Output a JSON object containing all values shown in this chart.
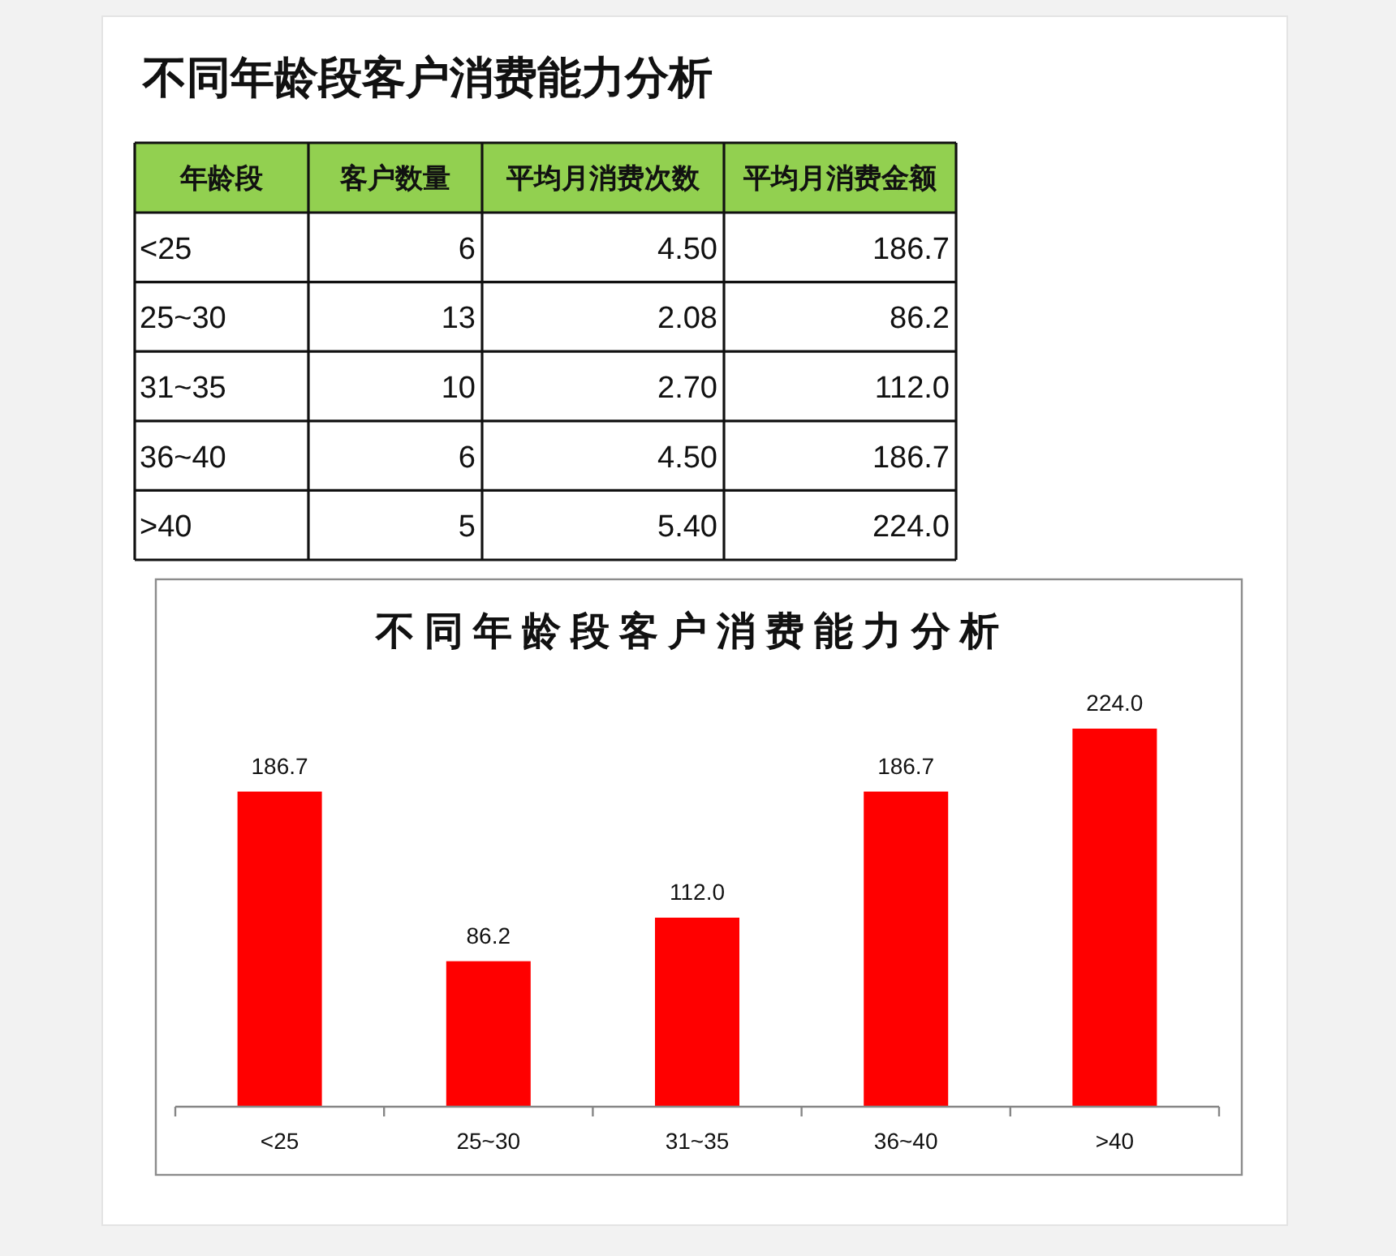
{
  "chart_data": [
    {
      "type": "other",
      "title": "不同年龄段客户消费能力分析",
      "xlabel": "年龄段",
      "categories": [
        "<25",
        "25~30",
        "31~35",
        "36~40",
        ">40"
      ],
      "data_labels": true,
      "series": [
        {
          "name": "客户数量",
          "values": [
            6,
            13,
            10,
            6,
            5
          ]
        },
        {
          "name": "平均月消费次数",
          "values": [
            4.5,
            2.08,
            2.7,
            4.5,
            5.4
          ],
          "value_labels": [
            "4.50",
            "2.08",
            "2.70",
            "4.50",
            "5.40"
          ]
        },
        {
          "name": "平均月消费金额",
          "values": [
            186.7,
            86.2,
            112.0,
            186.7,
            224.0
          ],
          "value_labels": [
            "186.7",
            "86.2",
            "112.0",
            "186.7",
            "224.0"
          ]
        }
      ]
    },
    {
      "type": "bar",
      "title": "不同年龄段客户消费能力分析",
      "categories": [
        "<25",
        "25~30",
        "31~35",
        "36~40",
        ">40"
      ],
      "values": [
        186.7,
        86.2,
        112.0,
        186.7,
        224.0
      ],
      "value_labels": [
        "186.7",
        "86.2",
        "112.0",
        "186.7",
        "224.0"
      ],
      "color": "#ff0000"
    }
  ]
}
